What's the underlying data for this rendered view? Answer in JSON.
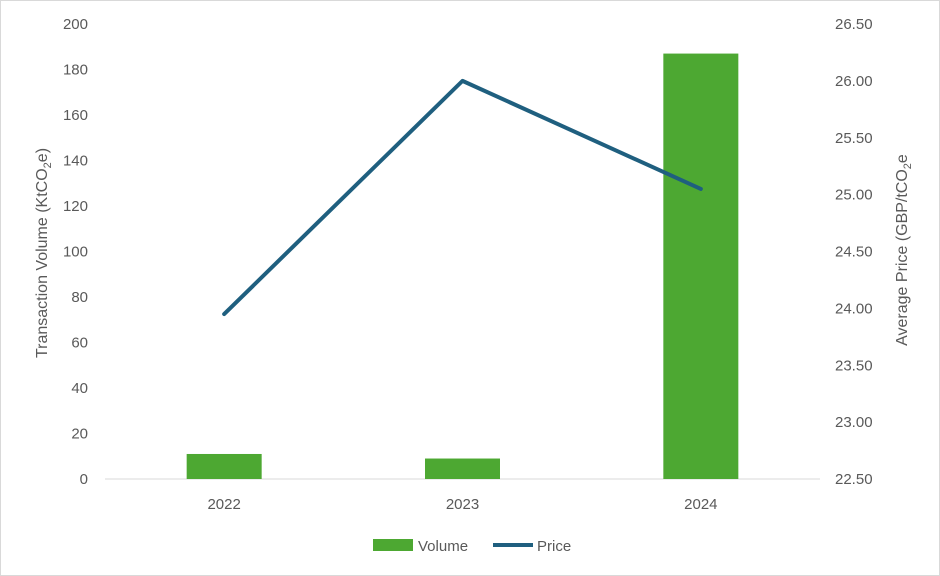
{
  "chart_data": {
    "type": "bar",
    "categories": [
      "2022",
      "2023",
      "2024"
    ],
    "series": [
      {
        "name": "Volume",
        "chart": "bar",
        "axis": "left",
        "color": "#4da832",
        "values": [
          11,
          9,
          187
        ]
      },
      {
        "name": "Price",
        "chart": "line",
        "axis": "right",
        "color": "#1f5f7f",
        "values": [
          23.95,
          26.0,
          25.05
        ]
      }
    ],
    "ylabel_left": {
      "main": "Transaction Volume (KtCO",
      "sub": "2",
      "tail": "e)"
    },
    "ylabel_right": {
      "main": "Average Price (GBP/tCO",
      "sub": "2",
      "tail": "e"
    },
    "ylim_left": [
      0,
      200
    ],
    "yticks_left": [
      "0",
      "20",
      "40",
      "60",
      "80",
      "100",
      "120",
      "140",
      "160",
      "180",
      "200"
    ],
    "ylim_right": [
      22.5,
      26.5
    ],
    "yticks_right": [
      "22.50",
      "23.00",
      "23.50",
      "24.00",
      "24.50",
      "25.00",
      "25.50",
      "26.00",
      "26.50"
    ],
    "grid": false,
    "legend_position": "bottom"
  }
}
